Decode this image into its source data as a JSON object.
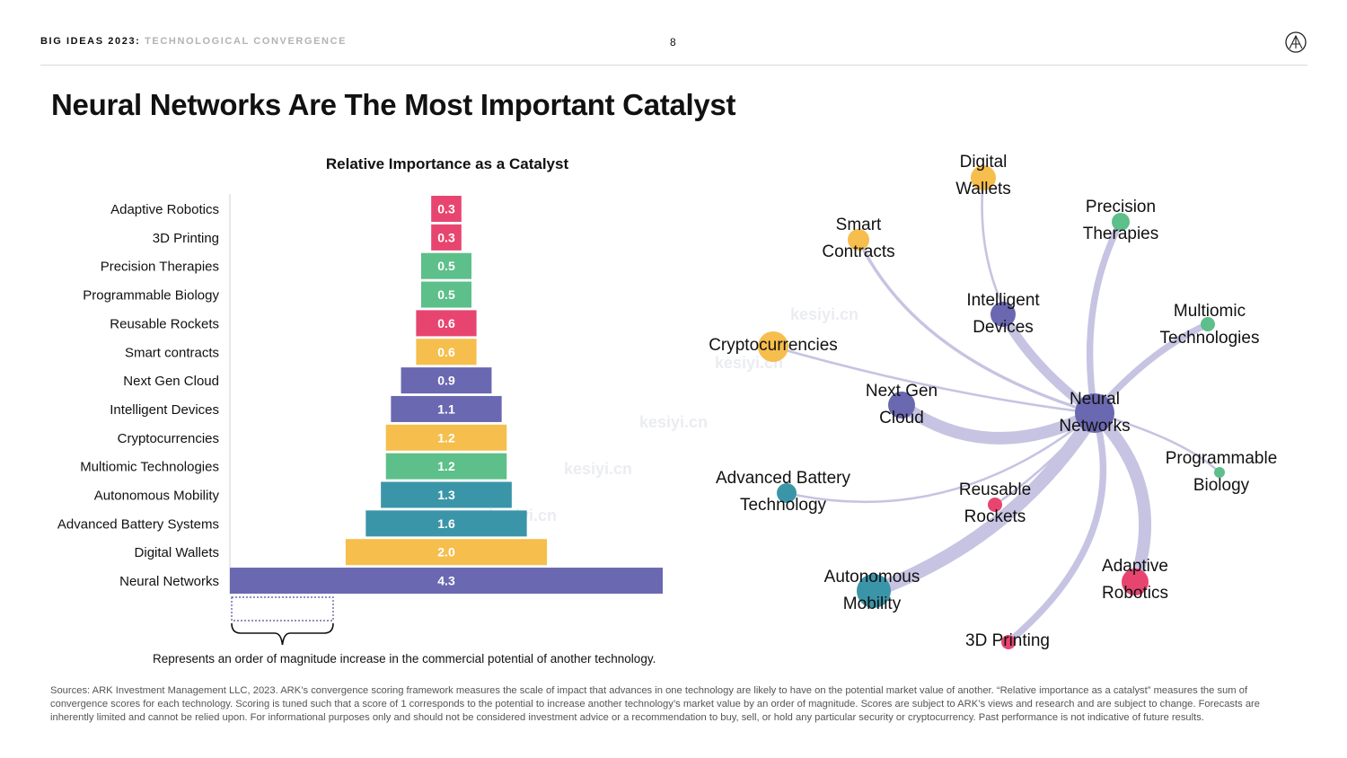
{
  "header": {
    "brand": "BIG IDEAS 2023",
    "separator": ":",
    "subtitle": "TECHNOLOGICAL CONVERGENCE",
    "page_number": "8",
    "logo_icon": "ark-logo-icon"
  },
  "title": "Neural Networks Are The Most Important Catalyst",
  "colors": {
    "purple": "#6a68b0",
    "yellow": "#f6be4c",
    "green": "#5dbf8a",
    "teal": "#3b95a8",
    "pink": "#e7456f",
    "edge": "#c6c4e2"
  },
  "chart_data": [
    {
      "type": "bar",
      "orientation": "horizontal-centered",
      "title": "Relative Importance as a Catalyst",
      "categories": [
        "Adaptive Robotics",
        "3D Printing",
        "Precision Therapies",
        "Programmable Biology",
        "Reusable Rockets",
        "Smart contracts",
        "Next Gen Cloud",
        "Intelligent Devices",
        "Cryptocurrencies",
        "Multiomic Technologies",
        "Autonomous Mobility",
        "Advanced Battery Systems",
        "Digital Wallets",
        "Neural Networks"
      ],
      "values": [
        0.3,
        0.3,
        0.5,
        0.5,
        0.6,
        0.6,
        0.9,
        1.1,
        1.2,
        1.2,
        1.3,
        1.6,
        2.0,
        4.3
      ],
      "value_labels": [
        "0.3",
        "0.3",
        "0.5",
        "0.5",
        "0.6",
        "0.6",
        "0.9",
        "1.1",
        "1.2",
        "1.2",
        "1.3",
        "1.6",
        "2.0",
        "4.3"
      ],
      "bar_colors": [
        "pink",
        "pink",
        "green",
        "green",
        "pink",
        "yellow",
        "purple",
        "purple",
        "yellow",
        "green",
        "teal",
        "teal",
        "yellow",
        "purple"
      ],
      "xlim": [
        0,
        4.3
      ],
      "scale_bar_value": 1.0,
      "scale_caption": "Represents an order of magnitude increase in the commercial potential of another technology."
    },
    {
      "type": "network",
      "nodes": [
        {
          "id": "nn",
          "label": [
            "Neural",
            "Networks"
          ],
          "color": "purple",
          "importance": 4.3
        },
        {
          "id": "dw",
          "label": [
            "Digital",
            "Wallets"
          ],
          "color": "yellow",
          "importance": 2.0
        },
        {
          "id": "pt",
          "label": [
            "Precision",
            "Therapies"
          ],
          "color": "green",
          "importance": 0.5
        },
        {
          "id": "sc",
          "label": [
            "Smart",
            "Contracts"
          ],
          "color": "yellow",
          "importance": 0.6
        },
        {
          "id": "id",
          "label": [
            "Intelligent",
            "Devices"
          ],
          "color": "purple",
          "importance": 1.1
        },
        {
          "id": "mt",
          "label": [
            "Multiomic",
            "Technologies"
          ],
          "color": "green",
          "importance": 1.2
        },
        {
          "id": "cc",
          "label": [
            "Cryptocurrencies"
          ],
          "color": "yellow",
          "importance": 1.2
        },
        {
          "id": "ngc",
          "label": [
            "Next Gen",
            "Cloud"
          ],
          "color": "purple",
          "importance": 0.9
        },
        {
          "id": "pb",
          "label": [
            "Programmable",
            "Biology"
          ],
          "color": "green",
          "importance": 0.5
        },
        {
          "id": "ab",
          "label": [
            "Advanced Battery",
            "Technology"
          ],
          "color": "teal",
          "importance": 1.6
        },
        {
          "id": "rr",
          "label": [
            "Reusable",
            "Rockets"
          ],
          "color": "pink",
          "importance": 0.6
        },
        {
          "id": "ar",
          "label": [
            "Adaptive",
            "Robotics"
          ],
          "color": "pink",
          "importance": 0.3
        },
        {
          "id": "am",
          "label": [
            "Autonomous",
            "Mobility"
          ],
          "color": "teal",
          "importance": 1.3
        },
        {
          "id": "3d",
          "label": [
            "3D Printing"
          ],
          "color": "pink",
          "importance": 0.3
        }
      ],
      "edges": [
        {
          "from": "nn",
          "to": "dw",
          "weight": 1
        },
        {
          "from": "nn",
          "to": "pt",
          "weight": 4
        },
        {
          "from": "nn",
          "to": "sc",
          "weight": 1.5
        },
        {
          "from": "nn",
          "to": "id",
          "weight": 6
        },
        {
          "from": "nn",
          "to": "mt",
          "weight": 4
        },
        {
          "from": "nn",
          "to": "cc",
          "weight": 1
        },
        {
          "from": "nn",
          "to": "ngc",
          "weight": 8
        },
        {
          "from": "nn",
          "to": "pb",
          "weight": 1
        },
        {
          "from": "nn",
          "to": "ab",
          "weight": 1
        },
        {
          "from": "nn",
          "to": "rr",
          "weight": 1
        },
        {
          "from": "nn",
          "to": "ar",
          "weight": 8
        },
        {
          "from": "nn",
          "to": "am",
          "weight": 9
        },
        {
          "from": "nn",
          "to": "3d",
          "weight": 4
        }
      ]
    }
  ],
  "watermark": "kesiyi.cn",
  "sources": "Sources: ARK Investment Management LLC, 2023. ARK’s convergence scoring framework measures the scale of impact that advances in one technology are likely to have on the potential market value of another. “Relative importance as a catalyst” measures the sum of convergence scores for each technology. Scoring is tuned such that a score of 1 corresponds to the potential to increase another technology’s market value by an order of magnitude. Scores are subject to ARK’s views and research and are subject to change. Forecasts are inherently limited and cannot be relied upon. For informational purposes only and should not be considered investment advice or a recommendation to buy, sell, or hold any particular security or cryptocurrency. Past performance is not indicative of future results."
}
